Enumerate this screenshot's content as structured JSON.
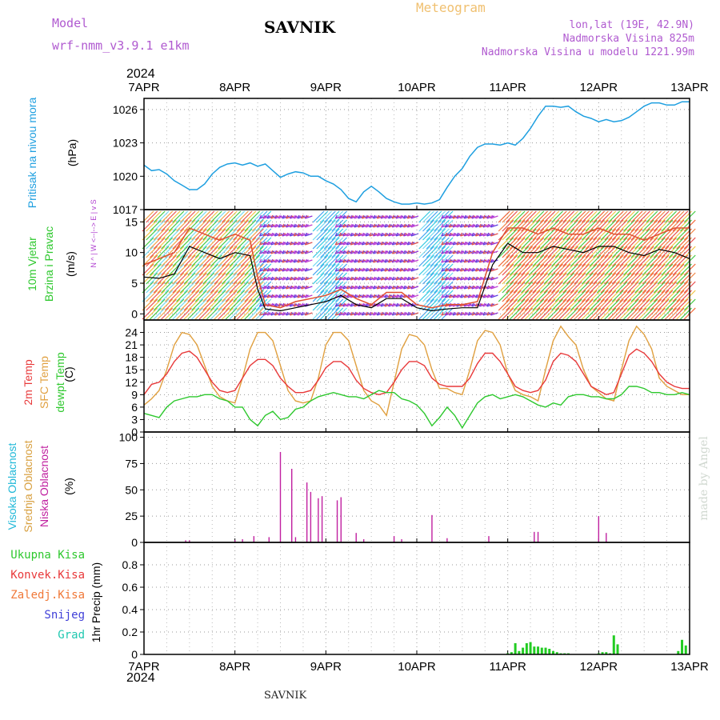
{
  "header": {
    "model_label": "Model",
    "model_name": "wrf-nmm_v3.9.1  e1km",
    "station": "SAVNIK",
    "meteogram_label": "Meteogram",
    "lonlat": "lon,lat (19E, 42.9N)",
    "altitude": "Nadmorska Visina 825m",
    "model_altitude": "Nadmorska Visina u modelu 1221.99m",
    "year": "2024",
    "footer_station": "SAVNIK",
    "watermark": "made by Angel"
  },
  "days": [
    "7APR",
    "8APR",
    "9APR",
    "10APR",
    "11APR",
    "12APR",
    "13APR"
  ],
  "colors": {
    "pressure": "#1e9fe0",
    "temp2m": "#e8393a",
    "sfc": "#e0a040",
    "dew": "#2ec82e",
    "cloud_high": "#20b8d8",
    "cloud_mid": "#d8a040",
    "cloud_low": "#c020a0",
    "precip": "#22cc22",
    "wind_speed": "#000000",
    "gust": "#e05030"
  },
  "panel_labels": {
    "pressure": [
      "Pritisak na nivou mora",
      "(hPa)"
    ],
    "wind": [
      "10m Vjetar",
      "Brzina i Pravac",
      "(m/s)"
    ],
    "wind_compass": [
      "N",
      "^",
      "|",
      "W  <--|-->  E",
      "|",
      "v",
      "S"
    ],
    "temp": [
      "2m Temp",
      "SFC Temp",
      "dewpt Temp",
      "(C)"
    ],
    "cloud": [
      "Visoka Oblacnost",
      "Srednja Oblacnost",
      "Niska Oblacnost",
      "(%)"
    ],
    "precip_unit": "1hr Precip (mm)",
    "precip_legend": [
      "Ukupna Kisa",
      "Konvek.Kisa",
      "Zaledj.Kisa",
      "Snijeg",
      "Grad"
    ]
  },
  "chart_data": [
    {
      "type": "line",
      "id": "pressure",
      "ylabel": "(hPa)",
      "ylim": [
        1017,
        1027
      ],
      "yticks": [
        1017,
        1020,
        1023,
        1026
      ],
      "x": [
        0,
        2,
        4,
        6,
        8,
        10,
        12,
        14,
        16,
        18,
        20,
        22,
        24,
        26,
        28,
        30,
        32,
        34,
        36,
        38,
        40,
        42,
        44,
        46,
        48,
        50,
        52,
        54,
        56,
        58,
        60,
        62,
        64,
        66,
        68,
        70,
        72,
        74,
        76,
        78,
        80,
        82,
        84,
        86,
        88,
        90,
        92,
        94,
        96,
        98,
        100,
        102,
        104,
        106,
        108,
        110,
        112,
        114,
        116,
        118,
        120,
        122,
        124,
        126,
        128,
        130,
        132,
        134,
        136,
        138,
        140,
        142,
        144
      ],
      "series": [
        {
          "values": [
            1021.0,
            1020.5,
            1020.6,
            1020.2,
            1019.6,
            1019.2,
            1018.8,
            1018.8,
            1019.3,
            1020.2,
            1020.8,
            1021.1,
            1021.2,
            1021.0,
            1021.2,
            1020.9,
            1021.1,
            1020.5,
            1019.9,
            1020.2,
            1020.4,
            1020.3,
            1020.0,
            1020.0,
            1019.6,
            1019.3,
            1018.8,
            1018.0,
            1017.7,
            1018.6,
            1019.1,
            1018.6,
            1018.0,
            1017.7,
            1017.5,
            1017.5,
            1017.6,
            1017.5,
            1017.6,
            1017.9,
            1019.0,
            1020.0,
            1020.7,
            1021.8,
            1022.6,
            1022.9,
            1022.9,
            1022.8,
            1023.0,
            1022.8,
            1023.4,
            1024.3,
            1025.4,
            1026.3,
            1026.3,
            1026.2,
            1026.3,
            1025.8,
            1025.4,
            1025.2,
            1024.9,
            1025.1,
            1024.9,
            1025.0,
            1025.3,
            1025.8,
            1026.3,
            1026.6,
            1026.6,
            1026.4,
            1026.4,
            1026.7,
            1026.7
          ]
        }
      ]
    },
    {
      "type": "line",
      "id": "wind",
      "ylabel": "(m/s)",
      "ylim": [
        -1,
        17
      ],
      "yticks": [
        0,
        5,
        10,
        15
      ],
      "x": [
        0,
        4,
        8,
        12,
        16,
        20,
        24,
        28,
        30,
        32,
        36,
        40,
        44,
        48,
        52,
        56,
        60,
        64,
        68,
        72,
        76,
        80,
        84,
        88,
        92,
        96,
        100,
        104,
        108,
        112,
        116,
        120,
        124,
        128,
        132,
        136,
        140,
        144
      ],
      "series": [
        {
          "name": "speed",
          "values": [
            6,
            5.8,
            6.5,
            11,
            10,
            9,
            10,
            9.5,
            4,
            0.8,
            0.5,
            1,
            1.5,
            2,
            3,
            1.5,
            1,
            2.5,
            2.5,
            1,
            0.5,
            0.8,
            1,
            1,
            8,
            11.5,
            10,
            10,
            11,
            10.5,
            10,
            11,
            11,
            10,
            9.5,
            10.5,
            10,
            9
          ]
        },
        {
          "name": "gust",
          "values": [
            8,
            9,
            10,
            14,
            13,
            12,
            13,
            12,
            6,
            1.5,
            1,
            2,
            2.5,
            3,
            4,
            2.5,
            1.5,
            3.5,
            3.5,
            1.5,
            1,
            1.5,
            1.5,
            2,
            10,
            14,
            14,
            13,
            14,
            13,
            13,
            14,
            13,
            13,
            12,
            13,
            14,
            14
          ]
        }
      ]
    },
    {
      "type": "line",
      "id": "temperature",
      "ylabel": "(C)",
      "ylim": [
        0,
        27
      ],
      "yticks": [
        0,
        3,
        6,
        9,
        12,
        15,
        18,
        21,
        24
      ],
      "x": [
        0,
        2,
        4,
        6,
        8,
        10,
        12,
        14,
        16,
        18,
        20,
        22,
        24,
        26,
        28,
        30,
        32,
        34,
        36,
        38,
        40,
        42,
        44,
        46,
        48,
        50,
        52,
        54,
        56,
        58,
        60,
        62,
        64,
        66,
        68,
        70,
        72,
        74,
        76,
        78,
        80,
        82,
        84,
        86,
        88,
        90,
        92,
        94,
        96,
        98,
        100,
        102,
        104,
        106,
        108,
        110,
        112,
        114,
        116,
        118,
        120,
        122,
        124,
        126,
        128,
        130,
        132,
        134,
        136,
        138,
        140,
        142,
        144
      ],
      "series": [
        {
          "name": "2m Temp",
          "values": [
            9,
            11.5,
            12,
            14,
            17,
            19,
            19.5,
            18,
            15,
            12,
            10,
            9.5,
            10,
            13,
            16,
            17.5,
            17.5,
            16,
            13,
            11,
            9.5,
            9.5,
            10,
            12.5,
            15.5,
            17,
            17,
            15.5,
            12.5,
            10.5,
            9.5,
            9,
            9.5,
            12,
            15,
            17,
            17,
            16,
            13,
            11.5,
            11,
            11,
            11,
            13,
            16.5,
            19,
            19,
            17,
            14,
            11,
            10,
            9.5,
            10,
            12.5,
            17,
            19,
            18.5,
            17,
            14,
            11,
            10,
            9,
            9.5,
            14,
            18.5,
            20,
            19,
            17,
            14,
            12,
            11,
            10.5,
            10.5
          ]
        },
        {
          "name": "SFC Temp",
          "values": [
            6.5,
            8,
            10,
            15,
            21,
            24,
            23.5,
            21,
            16,
            11,
            8.5,
            7.5,
            7,
            13,
            20,
            24,
            24,
            22,
            16,
            10,
            7.5,
            7,
            7.5,
            13,
            21,
            24,
            24,
            22,
            16,
            10,
            7.5,
            6.5,
            4,
            12,
            20,
            23.5,
            23,
            21,
            15,
            10.5,
            10.5,
            9.5,
            9,
            15,
            22,
            24.5,
            24,
            21,
            14,
            10,
            9,
            8.5,
            7.5,
            15,
            22,
            25.5,
            23,
            21,
            15,
            11,
            9.5,
            8,
            7.5,
            15,
            22,
            25.5,
            23.5,
            20,
            13,
            11,
            10,
            9,
            9
          ]
        },
        {
          "name": "dewpt Temp",
          "values": [
            4.5,
            4,
            3.5,
            6,
            7.5,
            8,
            8.5,
            8.5,
            9,
            9,
            8,
            7.5,
            6,
            6,
            3,
            1.5,
            4,
            5,
            3,
            3.5,
            5.5,
            6,
            7.5,
            8.5,
            9,
            9.5,
            9,
            8.5,
            8.5,
            8,
            9,
            10,
            9.5,
            9.5,
            8,
            7.5,
            6.5,
            4.5,
            1.5,
            3.5,
            6,
            4,
            1,
            4,
            7,
            8.5,
            9,
            8,
            8.5,
            9,
            8.5,
            7.5,
            6.5,
            6,
            7,
            6.5,
            8.5,
            9,
            9,
            8.5,
            8.5,
            8,
            8,
            9,
            11,
            11,
            10.5,
            9.5,
            9.5,
            9,
            9,
            9.5,
            9
          ]
        }
      ]
    },
    {
      "type": "bar",
      "id": "cloud",
      "ylabel": "(%)",
      "ylim": [
        0,
        105
      ],
      "yticks": [
        0,
        25,
        50,
        75,
        100
      ],
      "x": [
        11,
        12,
        24,
        26,
        29,
        33,
        36,
        39,
        40,
        43,
        44,
        46,
        47,
        51,
        52,
        56,
        58,
        66,
        68,
        76,
        80,
        91,
        103,
        104,
        120,
        122
      ],
      "series": [
        {
          "name": "Niska Oblacnost",
          "values": [
            2,
            2,
            2,
            3,
            6,
            5,
            86,
            70,
            5,
            57,
            48,
            42,
            44,
            40,
            43,
            9,
            3,
            6,
            3,
            26,
            4,
            6,
            10,
            10,
            25,
            9
          ]
        }
      ]
    },
    {
      "type": "bar",
      "id": "precip",
      "ylabel": "1hr Precip (mm)",
      "ylim": [
        0,
        1.0
      ],
      "yticks": [
        0,
        0.2,
        0.4,
        0.6,
        0.8
      ],
      "x": [
        96,
        97,
        98,
        99,
        100,
        101,
        102,
        103,
        104,
        105,
        106,
        107,
        108,
        109,
        110,
        111,
        112,
        120,
        121,
        122,
        123,
        124,
        125,
        141,
        142,
        143
      ],
      "series": [
        {
          "name": "Ukupna Kisa",
          "values": [
            0.01,
            0.02,
            0.1,
            0.03,
            0.06,
            0.1,
            0.11,
            0.07,
            0.07,
            0.06,
            0.06,
            0.05,
            0.03,
            0.02,
            0.01,
            0.01,
            0.01,
            0.01,
            0.02,
            0.02,
            0.01,
            0.17,
            0.09,
            0.03,
            0.13,
            0.08
          ]
        }
      ]
    }
  ]
}
